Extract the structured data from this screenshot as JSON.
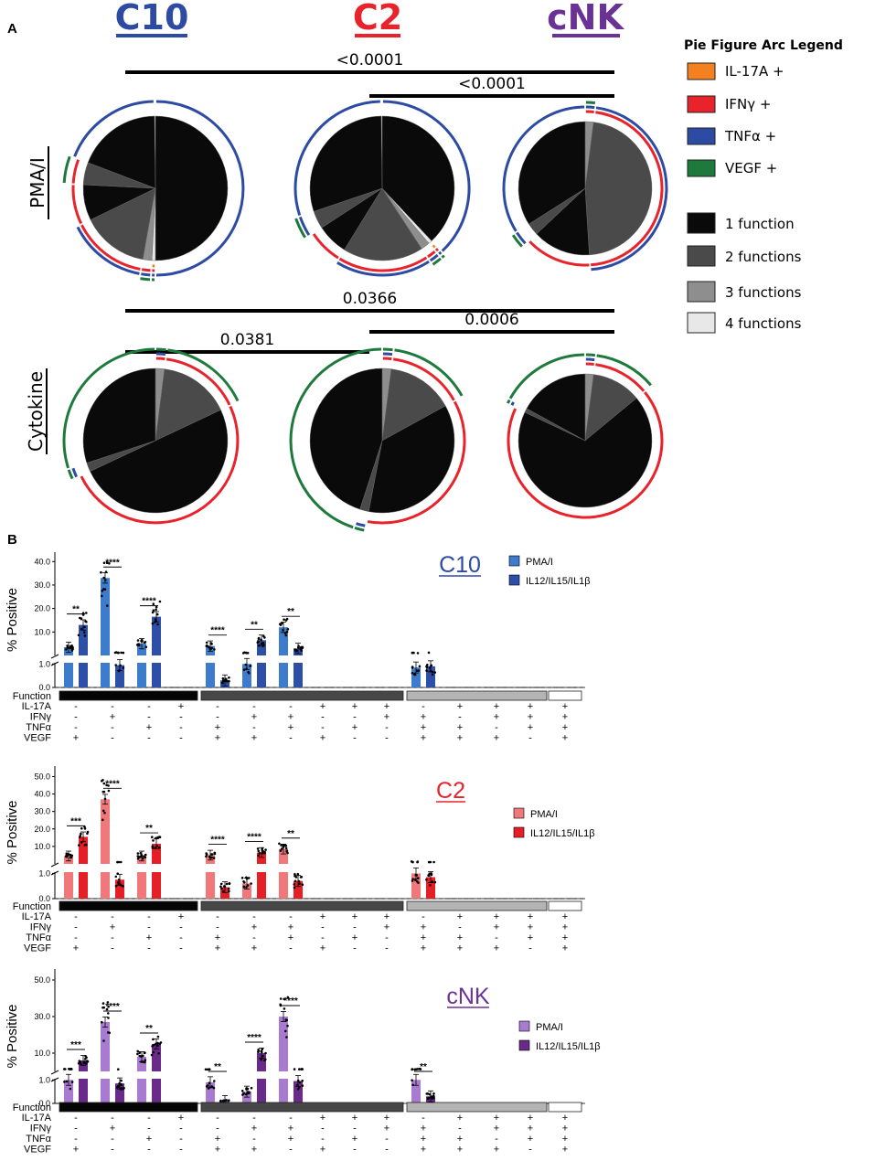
{
  "panel_labels": {
    "a": "A",
    "b": "B"
  },
  "colors": {
    "il17a": "#f4811f",
    "ifng": "#e8232b",
    "tnfa": "#2e4ba3",
    "vegf": "#1e7a3c",
    "c10": "#2e4ba3",
    "c2": "#e8232b",
    "cnk": "#6a3294",
    "f1": "#0a0a0a",
    "f2": "#4a4a4a",
    "f3": "#8e8e8e",
    "f4": "#e8e8e8"
  },
  "groups": [
    {
      "key": "c10",
      "label": "C10"
    },
    {
      "key": "c2",
      "label": "C2"
    },
    {
      "key": "cnk",
      "label": "cNK"
    }
  ],
  "row_labels": {
    "pma": "PMA/I",
    "cytokine": "Cytokine"
  },
  "legend": {
    "title": "Pie Figure Arc Legend",
    "arcs": [
      {
        "key": "il17a",
        "label": "IL-17A +"
      },
      {
        "key": "ifng",
        "label": "IFNγ +"
      },
      {
        "key": "tnfa",
        "label": "TNFα +"
      },
      {
        "key": "vegf",
        "label": "VEGF +"
      }
    ],
    "functions": [
      {
        "key": "f1",
        "label": "1 function"
      },
      {
        "key": "f2",
        "label": "2 functions"
      },
      {
        "key": "f3",
        "label": "3 functions"
      },
      {
        "key": "f4",
        "label": "4 functions"
      }
    ]
  },
  "pie_pvalues": {
    "pma": [
      {
        "from": 0,
        "to": 2,
        "label": "<0.0001"
      },
      {
        "from": 1,
        "to": 2,
        "label": "<0.0001"
      }
    ],
    "cytokine": [
      {
        "from": 0,
        "to": 2,
        "label": "0.0366"
      },
      {
        "from": 1,
        "to": 2,
        "label": "0.0006"
      },
      {
        "from": 0,
        "to": 1,
        "label": "0.0381"
      }
    ]
  },
  "chart_data": [
    {
      "type": "pie",
      "title": "C10 PMA/I",
      "slices": [
        {
          "fraction": 0.5,
          "level": 1,
          "markers": [
            "tnfa"
          ]
        },
        {
          "fraction": 0.008,
          "level": 4,
          "markers": [
            "il17a",
            "ifng",
            "tnfa",
            "vegf"
          ]
        },
        {
          "fraction": 0.02,
          "level": 3,
          "markers": [
            "ifng",
            "tnfa",
            "vegf"
          ]
        },
        {
          "fraction": 0.15,
          "level": 2,
          "markers": [
            "ifng",
            "tnfa"
          ]
        },
        {
          "fraction": 0.08,
          "level": 1,
          "markers": [
            "ifng"
          ]
        },
        {
          "fraction": 0.05,
          "level": 2,
          "markers": [
            "ifng",
            "vegf"
          ]
        },
        {
          "fraction": 0.19,
          "level": 1,
          "markers": [
            "tnfa"
          ]
        }
      ]
    },
    {
      "type": "pie",
      "title": "C2 PMA/I",
      "slices": [
        {
          "fraction": 0.38,
          "level": 1,
          "markers": [
            "tnfa"
          ]
        },
        {
          "fraction": 0.008,
          "level": 4,
          "markers": [
            "il17a",
            "ifng",
            "tnfa",
            "vegf"
          ]
        },
        {
          "fraction": 0.02,
          "level": 3,
          "markers": [
            "ifng",
            "tnfa",
            "vegf"
          ]
        },
        {
          "fraction": 0.18,
          "level": 2,
          "markers": [
            "ifng",
            "tnfa"
          ]
        },
        {
          "fraction": 0.07,
          "level": 1,
          "markers": [
            "ifng"
          ]
        },
        {
          "fraction": 0.04,
          "level": 2,
          "markers": [
            "tnfa",
            "vegf"
          ]
        },
        {
          "fraction": 0.3,
          "level": 1,
          "markers": [
            "tnfa"
          ]
        }
      ]
    },
    {
      "type": "pie",
      "title": "cNK PMA/I",
      "slices": [
        {
          "fraction": 0.02,
          "level": 3,
          "markers": [
            "ifng",
            "tnfa",
            "vegf"
          ]
        },
        {
          "fraction": 0.47,
          "level": 2,
          "markers": [
            "ifng",
            "tnfa"
          ]
        },
        {
          "fraction": 0.14,
          "level": 1,
          "markers": [
            "ifng"
          ]
        },
        {
          "fraction": 0.03,
          "level": 2,
          "markers": [
            "tnfa",
            "vegf"
          ]
        },
        {
          "fraction": 0.34,
          "level": 1,
          "markers": [
            "tnfa"
          ]
        }
      ]
    },
    {
      "type": "pie",
      "title": "C10 Cytokine",
      "slices": [
        {
          "fraction": 0.02,
          "level": 3,
          "markers": [
            "ifng",
            "tnfa",
            "vegf"
          ]
        },
        {
          "fraction": 0.16,
          "level": 2,
          "markers": [
            "ifng",
            "vegf"
          ]
        },
        {
          "fraction": 0.5,
          "level": 1,
          "markers": [
            "ifng"
          ]
        },
        {
          "fraction": 0.02,
          "level": 2,
          "markers": [
            "tnfa",
            "vegf"
          ]
        },
        {
          "fraction": 0.3,
          "level": 1,
          "markers": [
            "vegf"
          ]
        }
      ]
    },
    {
      "type": "pie",
      "title": "C2 Cytokine",
      "slices": [
        {
          "fraction": 0.02,
          "level": 3,
          "markers": [
            "ifng",
            "tnfa",
            "vegf"
          ]
        },
        {
          "fraction": 0.15,
          "level": 2,
          "markers": [
            "ifng",
            "vegf"
          ]
        },
        {
          "fraction": 0.36,
          "level": 1,
          "markers": [
            "ifng"
          ]
        },
        {
          "fraction": 0.02,
          "level": 2,
          "markers": [
            "tnfa",
            "vegf"
          ]
        },
        {
          "fraction": 0.45,
          "level": 1,
          "markers": [
            "vegf"
          ]
        }
      ]
    },
    {
      "type": "pie",
      "title": "cNK Cytokine",
      "slices": [
        {
          "fraction": 0.02,
          "level": 3,
          "markers": [
            "ifng",
            "tnfa",
            "vegf"
          ]
        },
        {
          "fraction": 0.12,
          "level": 2,
          "markers": [
            "ifng",
            "vegf"
          ]
        },
        {
          "fraction": 0.68,
          "level": 1,
          "markers": [
            "ifng"
          ]
        },
        {
          "fraction": 0.01,
          "level": 2,
          "markers": [
            "tnfa",
            "vegf"
          ]
        },
        {
          "fraction": 0.17,
          "level": 1,
          "markers": [
            "vegf"
          ]
        }
      ]
    },
    {
      "type": "bar",
      "title": "C10",
      "ylabel": "% Positive",
      "yticks_upper": [
        "10.0",
        "20.0",
        "30.0",
        "40.0"
      ],
      "yticks_lower": [
        "0.0",
        "1.0"
      ],
      "legend": [
        "PMA/I",
        "IL12/IL15/IL1β"
      ],
      "function_label": "Function",
      "marker_rows": [
        "IL-17A",
        "IFNγ",
        "TNFα",
        "VEGF"
      ],
      "categories": [
        "----+",
        "-+--",
        "--+-",
        "+---",
        "--++",
        "-+-+",
        "-++-",
        "+--+",
        "+-+-",
        "++--",
        "-+++",
        "+-++",
        "++-+",
        "+++-",
        "++++"
      ],
      "signs": [
        [
          "-",
          "-",
          "-",
          "+",
          "-",
          "-",
          "-",
          "+",
          "+",
          "+",
          "-",
          "+",
          "+",
          "+",
          "+"
        ],
        [
          "-",
          "+",
          "-",
          "-",
          "-",
          "+",
          "+",
          "-",
          "-",
          "+",
          "+",
          "-",
          "+",
          "+",
          "+"
        ],
        [
          "-",
          "-",
          "+",
          "-",
          "+",
          "-",
          "+",
          "-",
          "+",
          "-",
          "+",
          "+",
          "-",
          "+",
          "+"
        ],
        [
          "+",
          "-",
          "-",
          "-",
          "+",
          "+",
          "-",
          "+",
          "-",
          "-",
          "+",
          "+",
          "+",
          "-",
          "+"
        ]
      ],
      "series": [
        {
          "name": "PMA/I",
          "values": [
            3.5,
            33.0,
            5.0,
            0.0,
            4.0,
            1.0,
            12.0,
            0.0,
            0.0,
            0.0,
            0.85,
            0.0,
            0.0,
            0.0,
            0.0
          ]
        },
        {
          "name": "IL12/IL15/IL1β",
          "values": [
            13.0,
            0.95,
            16.5,
            0.0,
            0.3,
            6.5,
            3.0,
            0.0,
            0.0,
            0.0,
            0.9,
            0.0,
            0.0,
            0.0,
            0.0
          ]
        }
      ],
      "significance": [
        {
          "index": 0,
          "label": "**"
        },
        {
          "index": 1,
          "label": "****"
        },
        {
          "index": 2,
          "label": "****"
        },
        {
          "index": 4,
          "label": "****"
        },
        {
          "index": 5,
          "label": "**"
        },
        {
          "index": 6,
          "label": "**"
        }
      ]
    },
    {
      "type": "bar",
      "title": "C2",
      "ylabel": "% Positive",
      "yticks_upper": [
        "10.0",
        "20.0",
        "30.0",
        "40.0",
        "50.0"
      ],
      "yticks_lower": [
        "0.0",
        "1.0"
      ],
      "legend": [
        "PMA/I",
        "IL12/IL15/IL1β"
      ],
      "function_label": "Function",
      "marker_rows": [
        "IL-17A",
        "IFNγ",
        "TNFα",
        "VEGF"
      ],
      "categories": [
        "----+",
        "-+--",
        "--+-",
        "+---",
        "--++",
        "-+-+",
        "-++-",
        "+--+",
        "+-+-",
        "++--",
        "-+++",
        "+-++",
        "++-+",
        "+++-",
        "++++"
      ],
      "signs": [
        [
          "-",
          "-",
          "-",
          "+",
          "-",
          "-",
          "-",
          "+",
          "+",
          "+",
          "-",
          "+",
          "+",
          "+",
          "+"
        ],
        [
          "-",
          "+",
          "-",
          "-",
          "-",
          "+",
          "+",
          "-",
          "-",
          "+",
          "+",
          "-",
          "+",
          "+",
          "+"
        ],
        [
          "-",
          "-",
          "+",
          "-",
          "+",
          "-",
          "+",
          "-",
          "+",
          "-",
          "+",
          "+",
          "-",
          "+",
          "+"
        ],
        [
          "+",
          "-",
          "-",
          "-",
          "+",
          "+",
          "-",
          "+",
          "-",
          "-",
          "+",
          "+",
          "+",
          "-",
          "+"
        ]
      ],
      "series": [
        {
          "name": "PMA/I",
          "values": [
            4.5,
            37.0,
            4.5,
            0.0,
            5.0,
            0.6,
            8.5,
            0.0,
            0.0,
            0.0,
            1.0,
            0.0,
            0.0,
            0.0,
            0.0
          ]
        },
        {
          "name": "IL12/IL15/IL1β",
          "values": [
            15.5,
            0.75,
            11.5,
            0.0,
            0.45,
            6.5,
            0.7,
            0.0,
            0.0,
            0.0,
            0.85,
            0.0,
            0.0,
            0.0,
            0.0
          ]
        }
      ],
      "significance": [
        {
          "index": 0,
          "label": "***"
        },
        {
          "index": 1,
          "label": "****"
        },
        {
          "index": 2,
          "label": "**"
        },
        {
          "index": 4,
          "label": "****"
        },
        {
          "index": 5,
          "label": "****"
        },
        {
          "index": 6,
          "label": "**"
        }
      ]
    },
    {
      "type": "bar",
      "title": "cNK",
      "ylabel": "% Positive",
      "yticks_upper": [
        "10.0",
        "30.0",
        "50.0"
      ],
      "yticks_lower": [
        "0.0",
        "1.0"
      ],
      "legend": [
        "PMA/I",
        "IL12/IL15/IL1β"
      ],
      "function_label": "Function",
      "marker_rows": [
        "IL-17A",
        "IFNγ",
        "TNFα",
        "VEGF"
      ],
      "categories": [
        "----+",
        "-+--",
        "--+-",
        "+---",
        "--++",
        "-+-+",
        "-++-",
        "+--+",
        "+-+-",
        "++--",
        "-+++",
        "+-++",
        "++-+",
        "+++-",
        "++++"
      ],
      "signs": [
        [
          "-",
          "-",
          "-",
          "+",
          "-",
          "-",
          "-",
          "+",
          "+",
          "+",
          "-",
          "+",
          "+",
          "+",
          "+"
        ],
        [
          "-",
          "+",
          "-",
          "-",
          "-",
          "+",
          "+",
          "-",
          "-",
          "+",
          "+",
          "-",
          "+",
          "+",
          "+"
        ],
        [
          "-",
          "-",
          "+",
          "-",
          "+",
          "-",
          "+",
          "-",
          "+",
          "-",
          "+",
          "+",
          "-",
          "+",
          "+"
        ],
        [
          "+",
          "-",
          "-",
          "-",
          "+",
          "+",
          "-",
          "+",
          "-",
          "-",
          "+",
          "+",
          "+",
          "-",
          "+"
        ]
      ],
      "series": [
        {
          "name": "PMA/I",
          "values": [
            1.0,
            27.0,
            8.0,
            0.0,
            0.9,
            0.5,
            30.0,
            0.0,
            0.0,
            0.0,
            1.0,
            0.0,
            0.0,
            0.0,
            0.0
          ]
        },
        {
          "name": "IL12/IL15/IL1β",
          "values": [
            6.0,
            0.85,
            15.0,
            0.0,
            0.1,
            10.0,
            0.95,
            0.0,
            0.0,
            0.0,
            0.3,
            0.0,
            0.0,
            0.0,
            0.0
          ]
        }
      ],
      "significance": [
        {
          "index": 0,
          "label": "***"
        },
        {
          "index": 1,
          "label": "****"
        },
        {
          "index": 2,
          "label": "**"
        },
        {
          "index": 4,
          "label": "**"
        },
        {
          "index": 5,
          "label": "****"
        },
        {
          "index": 6,
          "label": "****"
        },
        {
          "index": 10,
          "label": "**"
        }
      ]
    }
  ]
}
